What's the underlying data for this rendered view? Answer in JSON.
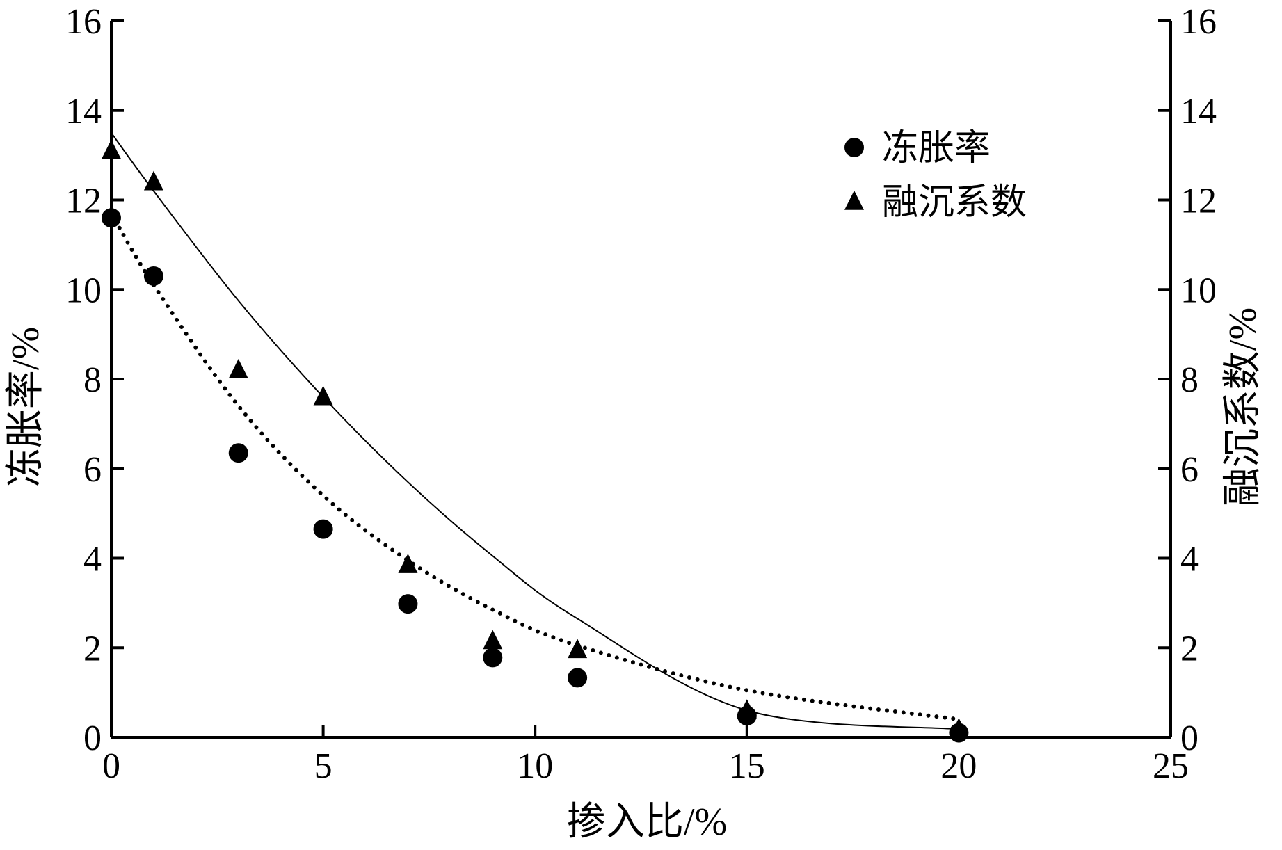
{
  "chart_data": {
    "type": "scatter",
    "xlabel": "掺入比/%",
    "ylabel_left": "冻胀率/%",
    "ylabel_right": "融沉系数/%",
    "xlim": [
      0,
      25
    ],
    "ylim": [
      0,
      16
    ],
    "xticks": [
      "0",
      "5",
      "10",
      "15",
      "20",
      "25"
    ],
    "yticks": [
      "0",
      "2",
      "4",
      "6",
      "8",
      "10",
      "12",
      "14",
      "16"
    ],
    "grid": false,
    "legend_position": "top-right",
    "series": [
      {
        "name": "冻胀率",
        "marker": "circle",
        "axis": "left",
        "x": [
          0,
          1,
          3,
          5,
          7,
          9,
          11,
          15,
          20
        ],
        "y": [
          11.6,
          10.3,
          6.35,
          4.65,
          2.98,
          1.78,
          1.33,
          0.48,
          0.1
        ],
        "fit": {
          "style": "dotted",
          "y": [
            11.7,
            10.1,
            7.4,
            5.4,
            3.95,
            2.85,
            2.05,
            1.05,
            0.4
          ]
        }
      },
      {
        "name": "融沉系数",
        "marker": "triangle",
        "axis": "right",
        "x": [
          0,
          1,
          3,
          5,
          7,
          9,
          11,
          15,
          20
        ],
        "y": [
          13.1,
          12.4,
          8.2,
          7.6,
          3.85,
          2.15,
          1.95,
          0.6,
          0.18
        ],
        "fit": {
          "style": "solid",
          "y": [
            13.5,
            12.2,
            9.75,
            7.6,
            5.7,
            4.05,
            2.65,
            0.6,
            0.18
          ]
        }
      }
    ],
    "colors": {
      "marker": "#000000",
      "line": "#000000"
    }
  }
}
